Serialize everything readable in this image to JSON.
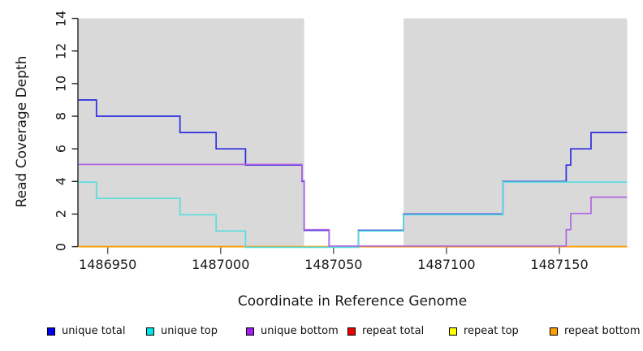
{
  "chart_data": {
    "type": "line",
    "subtype": "step-after",
    "title": "",
    "xlabel": "Coordinate in Reference Genome",
    "ylabel": "Read Coverage Depth",
    "xlim": [
      1486937,
      1487180
    ],
    "ylim": [
      0,
      14
    ],
    "x_ticks": [
      1486950,
      1487000,
      1487050,
      1487100,
      1487150
    ],
    "y_ticks": [
      0,
      2,
      4,
      6,
      8,
      10,
      12,
      14
    ],
    "grid": "off",
    "shade_color": "#d9d9d9",
    "shaded_regions": [
      [
        1486937,
        1487037
      ],
      [
        1487081,
        1487180
      ]
    ],
    "series": [
      {
        "name": "repeat total",
        "color": "#e02020",
        "points": [
          [
            1486937,
            0
          ]
        ]
      },
      {
        "name": "repeat top",
        "color": "#ffff40",
        "points": [
          [
            1486937,
            0
          ]
        ]
      },
      {
        "name": "repeat bottom",
        "color": "#ff9a00",
        "points": [
          [
            1486937,
            0
          ]
        ]
      },
      {
        "name": "unique total",
        "color": "#2d2de0",
        "points": [
          [
            1486937,
            9
          ],
          [
            1486945,
            8
          ],
          [
            1486982,
            7
          ],
          [
            1486998,
            6
          ],
          [
            1487011,
            5
          ],
          [
            1487036,
            4
          ],
          [
            1487037,
            1
          ],
          [
            1487048,
            0
          ],
          [
            1487061,
            1
          ],
          [
            1487081,
            2
          ],
          [
            1487125,
            4
          ],
          [
            1487153,
            5
          ],
          [
            1487155,
            6
          ],
          [
            1487164,
            7
          ]
        ]
      },
      {
        "name": "unique top",
        "color": "#5adcdc",
        "points": [
          [
            1486937,
            4
          ],
          [
            1486945,
            3
          ],
          [
            1486982,
            2
          ],
          [
            1486998,
            1
          ],
          [
            1487011,
            0
          ],
          [
            1487061,
            1
          ],
          [
            1487081,
            2
          ],
          [
            1487125,
            4
          ]
        ]
      },
      {
        "name": "unique bottom",
        "color": "#b064e0",
        "points": [
          [
            1486937,
            5
          ],
          [
            1487036,
            4
          ],
          [
            1487037,
            1
          ],
          [
            1487048,
            0
          ],
          [
            1487153,
            1
          ],
          [
            1487155,
            2
          ],
          [
            1487164,
            3
          ]
        ]
      }
    ],
    "legend": {
      "position": "bottom",
      "entries": [
        {
          "label": "unique total",
          "color": "#0000f0"
        },
        {
          "label": "unique top",
          "color": "#00e6e6"
        },
        {
          "label": "unique bottom",
          "color": "#a020f0"
        },
        {
          "label": "repeat total",
          "color": "#f00000"
        },
        {
          "label": "repeat top",
          "color": "#ffff00"
        },
        {
          "label": "repeat bottom",
          "color": "#ffa000"
        }
      ]
    }
  }
}
